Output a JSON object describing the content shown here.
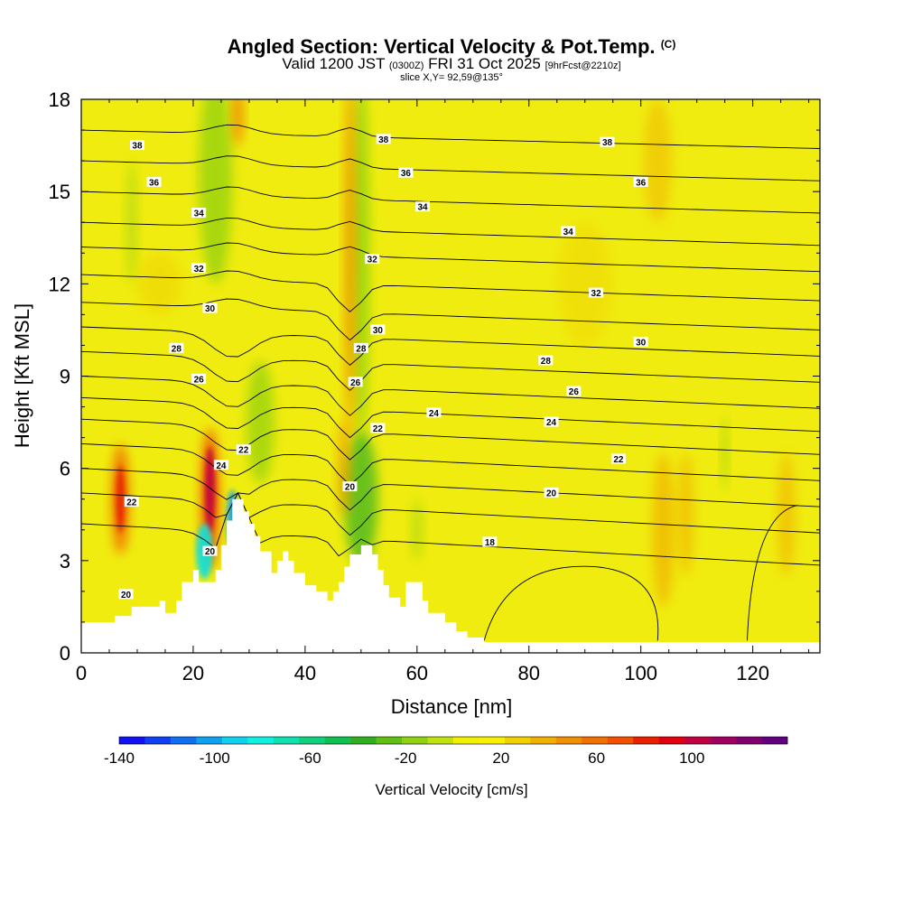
{
  "title": {
    "main": "Angled Section: Vertical Velocity & Pot.Temp.",
    "copyright": "(C)",
    "valid_prefix": "Valid 1200 JST",
    "valid_utc": "(0300Z)",
    "valid_date": "FRI 31 Oct 2025",
    "forecast": "[9hrFcst@2210z]",
    "slice": "slice X,Y= 92,59@135°"
  },
  "chart_data": {
    "type": "heatmap",
    "xlabel": "Distance [nm]",
    "ylabel": "Height [Kft MSL]",
    "xlim": [
      0,
      132
    ],
    "ylim": [
      0,
      18
    ],
    "xticks": [
      0,
      20,
      40,
      60,
      80,
      100,
      120
    ],
    "yticks": [
      0,
      3,
      6,
      9,
      12,
      15,
      18
    ],
    "colorbar": {
      "label": "Vertical Velocity [cm/s]",
      "ticks": [
        -140,
        -100,
        -60,
        -20,
        20,
        60,
        100
      ],
      "range": [
        -140,
        140
      ],
      "colors": [
        "#1010f0",
        "#1040f0",
        "#1070f0",
        "#10a0f0",
        "#10d0f0",
        "#10f0e0",
        "#10e0b0",
        "#10d080",
        "#10c050",
        "#30b020",
        "#60c010",
        "#90d010",
        "#c0e010",
        "#f0f000",
        "#f8f000",
        "#f0d000",
        "#f0b000",
        "#f09000",
        "#f07000",
        "#f05000",
        "#e82000",
        "#e00010",
        "#c00040",
        "#a00060",
        "#800070",
        "#600080"
      ]
    },
    "terrain": [
      [
        0,
        1
      ],
      [
        6,
        1
      ],
      [
        6,
        1.2
      ],
      [
        9,
        1.2
      ],
      [
        9,
        1.5
      ],
      [
        14,
        1.5
      ],
      [
        14,
        1.7
      ],
      [
        15,
        1.7
      ],
      [
        15,
        1.3
      ],
      [
        17,
        1.3
      ],
      [
        17,
        1.7
      ],
      [
        18,
        1.7
      ],
      [
        18,
        2.3
      ],
      [
        20,
        2.3
      ],
      [
        20,
        2.7
      ],
      [
        21,
        2.7
      ],
      [
        21,
        2.3
      ],
      [
        24,
        2.3
      ],
      [
        24,
        2.7
      ],
      [
        25,
        2.7
      ],
      [
        25,
        3.5
      ],
      [
        26,
        3.5
      ],
      [
        26,
        4.3
      ],
      [
        27,
        4.3
      ],
      [
        27,
        5.0
      ],
      [
        29,
        5.0
      ],
      [
        29,
        4.6
      ],
      [
        30,
        4.6
      ],
      [
        30,
        4.2
      ],
      [
        31,
        4.2
      ],
      [
        31,
        3.8
      ],
      [
        32,
        3.8
      ],
      [
        32,
        3.3
      ],
      [
        34,
        3.3
      ],
      [
        34,
        2.6
      ],
      [
        35,
        2.6
      ],
      [
        35,
        3.0
      ],
      [
        36,
        3.0
      ],
      [
        36,
        3.3
      ],
      [
        37,
        3.3
      ],
      [
        37,
        3.0
      ],
      [
        38,
        3.0
      ],
      [
        38,
        2.6
      ],
      [
        40,
        2.6
      ],
      [
        40,
        2.2
      ],
      [
        42,
        2.2
      ],
      [
        42,
        2.0
      ],
      [
        44,
        2.0
      ],
      [
        44,
        1.7
      ],
      [
        45,
        1.7
      ],
      [
        45,
        2.0
      ],
      [
        46,
        2.0
      ],
      [
        46,
        2.3
      ],
      [
        47,
        2.3
      ],
      [
        47,
        2.8
      ],
      [
        48,
        2.8
      ],
      [
        48,
        3.2
      ],
      [
        50,
        3.2
      ],
      [
        50,
        3.5
      ],
      [
        52,
        3.5
      ],
      [
        52,
        3.2
      ],
      [
        53,
        3.2
      ],
      [
        53,
        2.7
      ],
      [
        54,
        2.7
      ],
      [
        54,
        2.2
      ],
      [
        55,
        2.2
      ],
      [
        55,
        1.8
      ],
      [
        57,
        1.8
      ],
      [
        57,
        1.5
      ],
      [
        58,
        1.5
      ],
      [
        58,
        2.3
      ],
      [
        61,
        2.3
      ],
      [
        61,
        1.7
      ],
      [
        62,
        1.7
      ],
      [
        62,
        1.3
      ],
      [
        65,
        1.3
      ],
      [
        65,
        1.0
      ],
      [
        67,
        1.0
      ],
      [
        67,
        0.7
      ],
      [
        69,
        0.7
      ],
      [
        69,
        0.5
      ],
      [
        72,
        0.5
      ],
      [
        72,
        0.35
      ],
      [
        132,
        0.35
      ]
    ],
    "pot_temp_contour_labels": [
      "38",
      "36",
      "34",
      "32",
      "30",
      "28",
      "26",
      "24",
      "22",
      "20",
      "18"
    ]
  }
}
